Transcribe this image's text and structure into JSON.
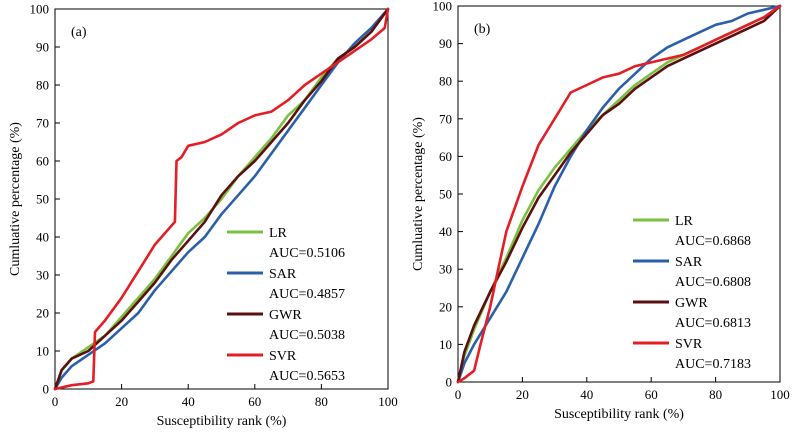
{
  "chart_data": [
    {
      "type": "line",
      "panel_label": "(a)",
      "title": "",
      "xlabel": "Susceptibility rank (%)",
      "ylabel": "Cumluative percentage (%)",
      "xlim": [
        0,
        100
      ],
      "ylim": [
        0,
        100
      ],
      "xticks": [
        0,
        20,
        40,
        60,
        80,
        100
      ],
      "yticks": [
        0,
        10,
        20,
        30,
        40,
        50,
        60,
        70,
        80,
        90,
        100
      ],
      "grid": false,
      "legend_position": "lower-right",
      "series": [
        {
          "name": "LR",
          "auc_label": "AUC=0.5106",
          "color": "#7ac142",
          "x": [
            0,
            2,
            5,
            10,
            15,
            20,
            25,
            30,
            35,
            40,
            45,
            50,
            55,
            60,
            65,
            70,
            75,
            80,
            85,
            90,
            95,
            100
          ],
          "y": [
            0,
            5,
            8,
            11,
            14,
            19,
            24,
            29,
            35,
            41,
            45,
            50,
            56,
            61,
            66,
            72,
            76,
            82,
            87,
            90,
            94,
            100
          ]
        },
        {
          "name": "SAR",
          "auc_label": "AUC=0.4857",
          "color": "#2b5faa",
          "x": [
            0,
            2,
            5,
            10,
            15,
            20,
            25,
            30,
            35,
            40,
            45,
            50,
            55,
            60,
            65,
            70,
            75,
            80,
            85,
            90,
            95,
            100
          ],
          "y": [
            0,
            3,
            6,
            9,
            12,
            16,
            20,
            26,
            31,
            36,
            40,
            46,
            51,
            56,
            62,
            68,
            74,
            80,
            86,
            91,
            95,
            100
          ]
        },
        {
          "name": "GWR",
          "auc_label": "AUC=0.5038",
          "color": "#5b0f0f",
          "x": [
            0,
            2,
            5,
            10,
            15,
            20,
            25,
            30,
            35,
            40,
            45,
            50,
            55,
            60,
            65,
            70,
            75,
            80,
            85,
            90,
            95,
            100
          ],
          "y": [
            0,
            5,
            8,
            10,
            14,
            18,
            23,
            28,
            34,
            39,
            44,
            51,
            56,
            60,
            65,
            70,
            76,
            81,
            87,
            90,
            94,
            100
          ]
        },
        {
          "name": "SVR",
          "auc_label": "AUC=0.5653",
          "color": "#e31e24",
          "x": [
            0,
            5,
            10,
            11.5,
            12,
            15,
            20,
            25,
            30,
            35,
            36,
            36.5,
            38,
            40,
            45,
            50,
            55,
            60,
            65,
            70,
            75,
            80,
            85,
            90,
            95,
            99,
            100
          ],
          "y": [
            0,
            1,
            1.5,
            2,
            15,
            18,
            24,
            31,
            38,
            43,
            44,
            60,
            61,
            64,
            65,
            67,
            70,
            72,
            73,
            76,
            80,
            83,
            86,
            89,
            92,
            95,
            100
          ]
        }
      ]
    },
    {
      "type": "line",
      "panel_label": "(b)",
      "title": "",
      "xlabel": "Susceptibility rank (%)",
      "ylabel": "Cumluative percentage (%)",
      "xlim": [
        0,
        100
      ],
      "ylim": [
        0,
        100
      ],
      "xticks": [
        0,
        20,
        40,
        60,
        80,
        100
      ],
      "yticks": [
        0,
        10,
        20,
        30,
        40,
        50,
        60,
        70,
        80,
        90,
        100
      ],
      "grid": false,
      "legend_position": "lower-right",
      "series": [
        {
          "name": "LR",
          "auc_label": "AUC=0.6868",
          "color": "#7ac142",
          "x": [
            0,
            2,
            5,
            10,
            15,
            20,
            25,
            30,
            35,
            40,
            45,
            50,
            55,
            60,
            65,
            70,
            75,
            80,
            85,
            90,
            95,
            100
          ],
          "y": [
            0,
            7,
            14,
            24,
            33,
            43,
            51,
            57,
            62,
            67,
            71,
            75,
            79,
            82,
            85,
            87,
            89,
            91,
            93,
            95,
            97,
            100
          ]
        },
        {
          "name": "SAR",
          "auc_label": "AUC=0.6808",
          "color": "#2b5faa",
          "x": [
            0,
            2,
            5,
            10,
            15,
            20,
            25,
            30,
            35,
            40,
            45,
            50,
            55,
            60,
            65,
            70,
            75,
            80,
            85,
            90,
            95,
            100
          ],
          "y": [
            0,
            5,
            10,
            17,
            24,
            33,
            42,
            52,
            60,
            67,
            73,
            78,
            82,
            86,
            89,
            91,
            93,
            95,
            96,
            98,
            99,
            100
          ]
        },
        {
          "name": "GWR",
          "auc_label": "AUC=0.6813",
          "color": "#5b0f0f",
          "x": [
            0,
            2,
            5,
            10,
            15,
            20,
            25,
            30,
            35,
            40,
            45,
            50,
            55,
            60,
            65,
            70,
            75,
            80,
            85,
            90,
            95,
            100
          ],
          "y": [
            0,
            8,
            15,
            24,
            32,
            41,
            49,
            55,
            61,
            66,
            71,
            74,
            78,
            81,
            84,
            86,
            88,
            90,
            92,
            94,
            96,
            100
          ]
        },
        {
          "name": "SVR",
          "auc_label": "AUC=0.7183",
          "color": "#e31e24",
          "x": [
            0,
            2,
            5,
            7,
            10,
            12,
            15,
            20,
            25,
            30,
            35,
            40,
            45,
            50,
            55,
            60,
            65,
            70,
            75,
            80,
            85,
            90,
            95,
            100
          ],
          "y": [
            0,
            1,
            3,
            10,
            20,
            28,
            40,
            52,
            63,
            70,
            77,
            79,
            81,
            82,
            84,
            85,
            86,
            87,
            89,
            91,
            93,
            95,
            97,
            100
          ]
        }
      ]
    }
  ]
}
